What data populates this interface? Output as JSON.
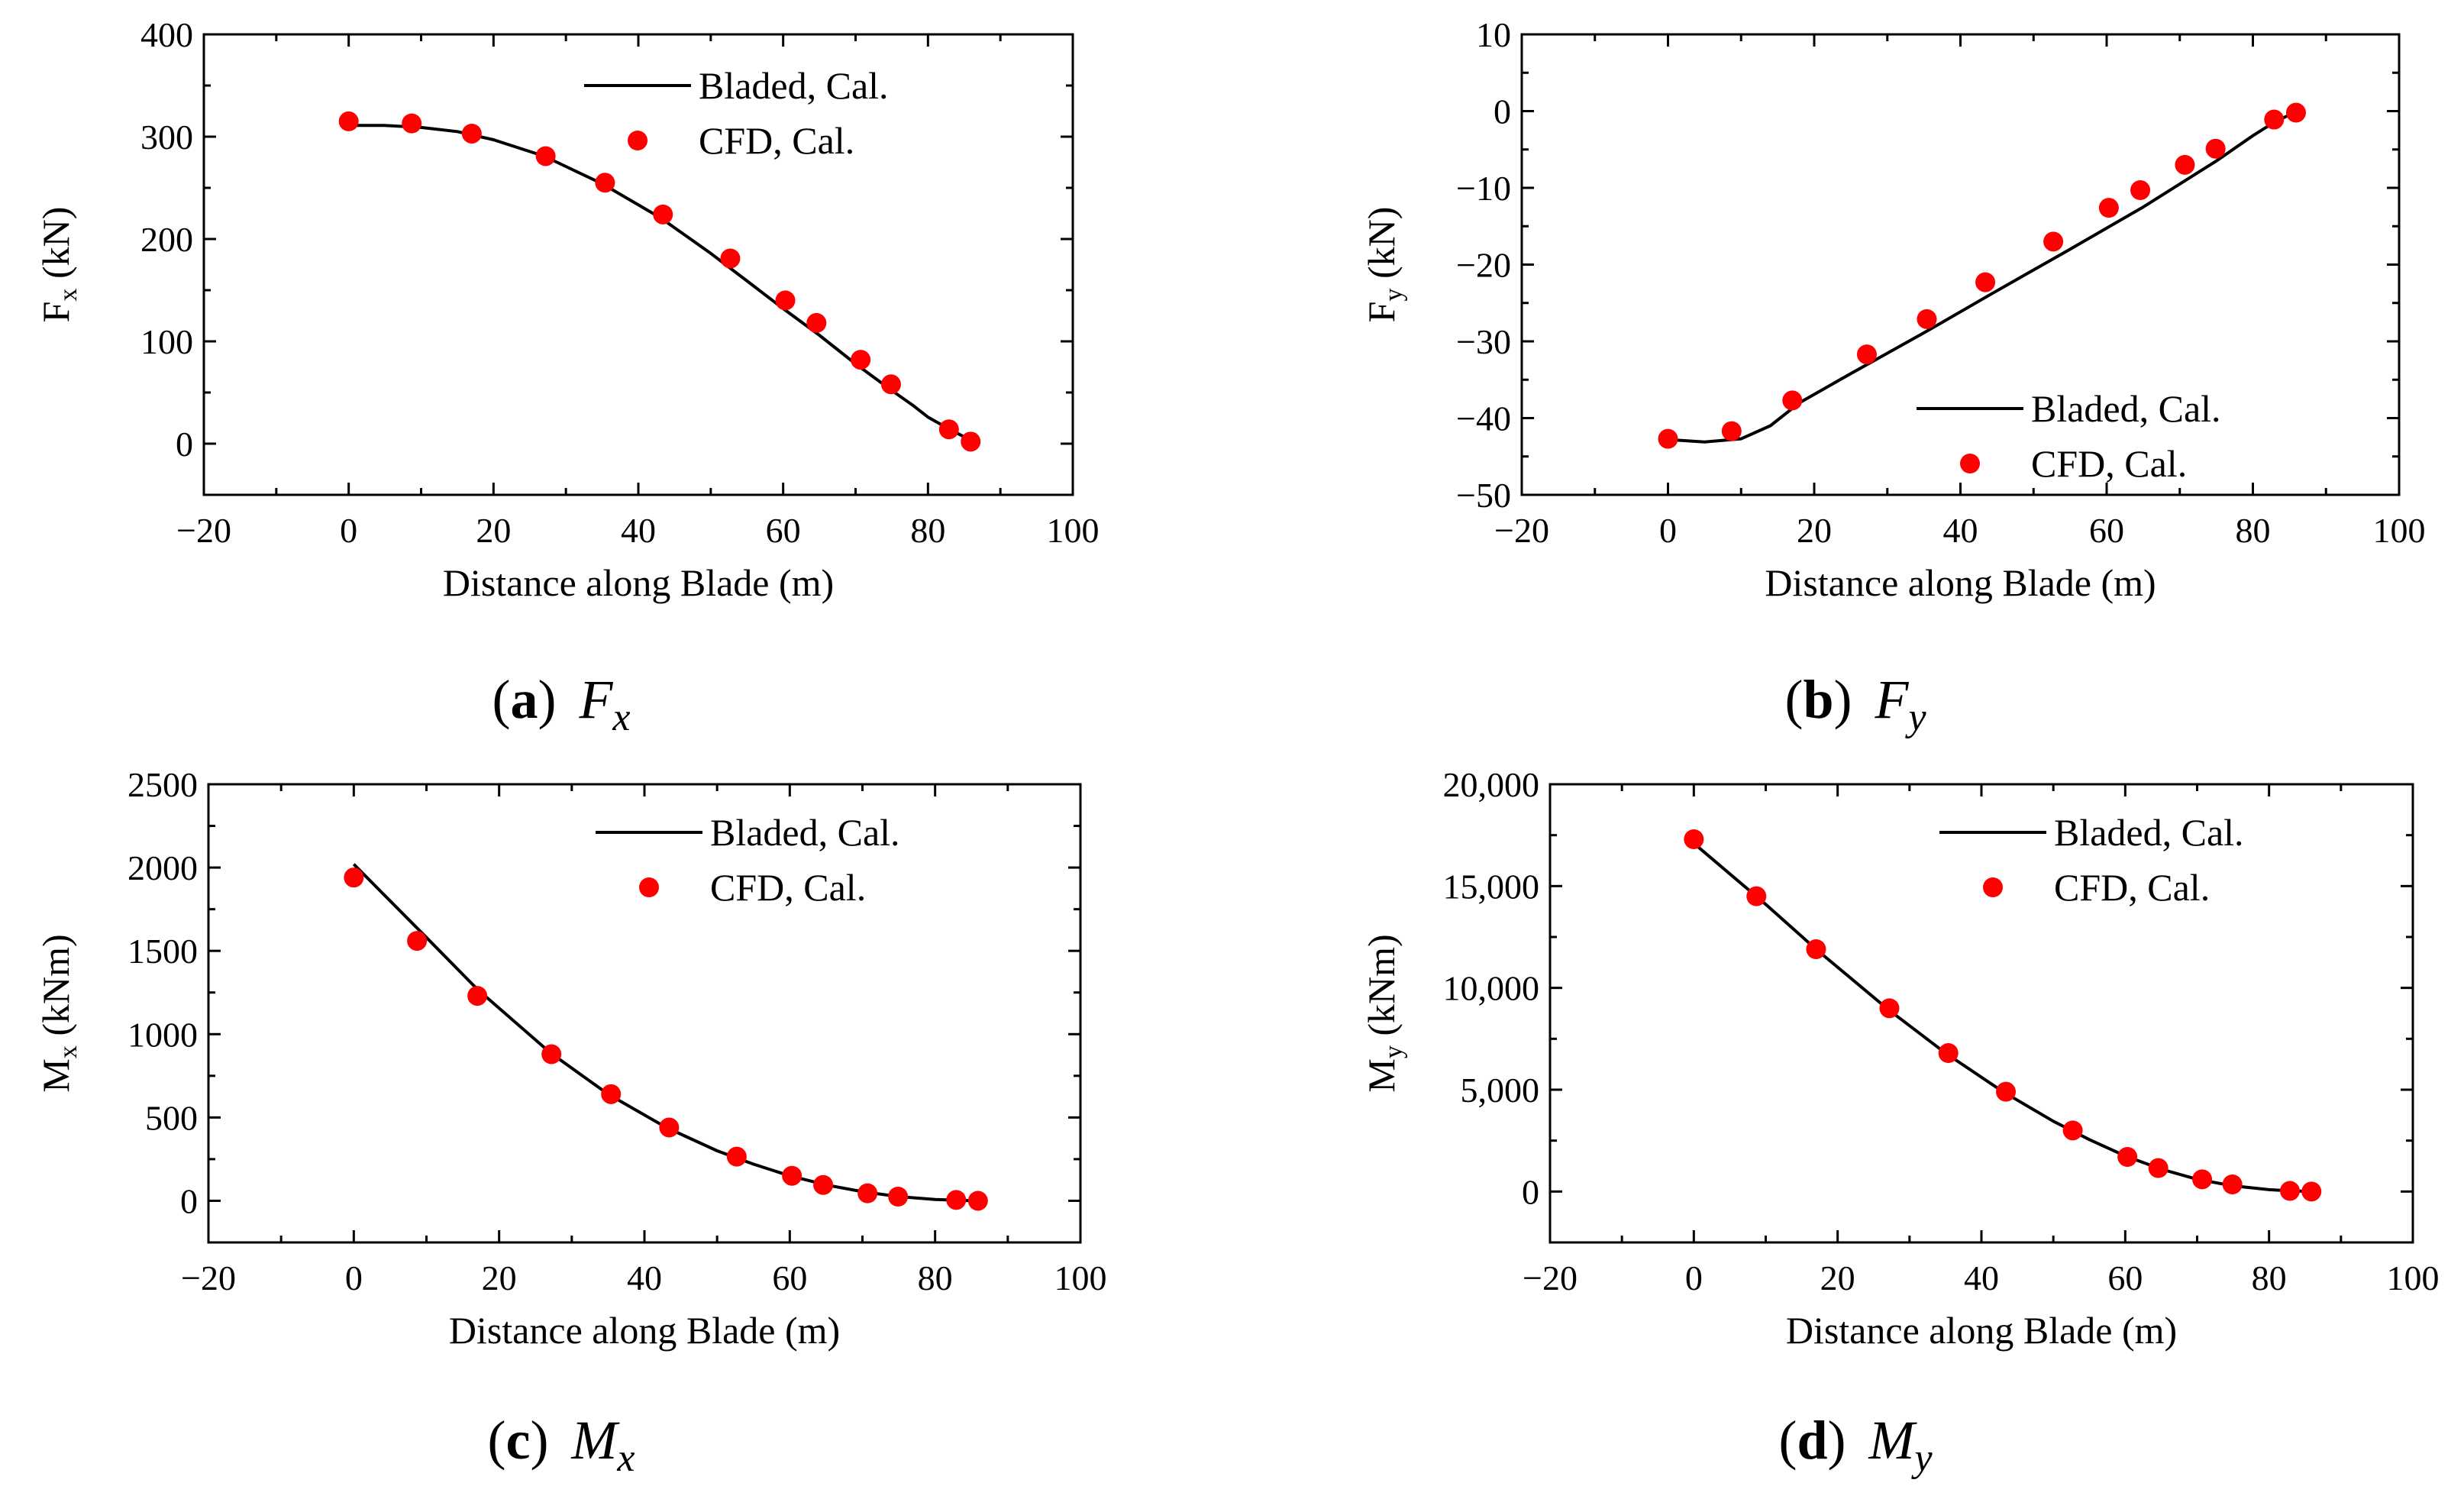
{
  "colors": {
    "line": "#000000",
    "marker": "#ff0000"
  },
  "chart_data": [
    {
      "type": "line",
      "panel": "a",
      "caption_tag": "(a)",
      "caption_symbol": "F",
      "caption_subscript": "x",
      "xlabel": "Distance along Blade (m)",
      "ylabel": "F",
      "ylabel_subscript": "x",
      "ylabel_unit": " (kN)",
      "xlim": [
        -20,
        100
      ],
      "ylim": [
        -50,
        400
      ],
      "xticks": [
        -20,
        0,
        20,
        40,
        60,
        80,
        100
      ],
      "xtick_labels": [
        "−20",
        "0",
        "20",
        "40",
        "60",
        "80",
        "100"
      ],
      "yticks": [
        0,
        100,
        200,
        300,
        400
      ],
      "ytick_labels": [
        "0",
        "100",
        "200",
        "300",
        "400"
      ],
      "legend_position": "top-right",
      "series": [
        {
          "name": "Bladed, Cal.",
          "kind": "line",
          "x": [
            0,
            5,
            10,
            15,
            20,
            27,
            35,
            43,
            50,
            55,
            60,
            65,
            70,
            75,
            78,
            80,
            83,
            86
          ],
          "y": [
            311,
            311,
            309,
            305,
            297,
            281,
            254,
            221,
            186,
            159,
            132,
            106,
            78,
            52,
            37,
            26,
            14,
            3
          ]
        },
        {
          "name": "CFD, Cal.",
          "kind": "scatter",
          "x": [
            0,
            8.7,
            17,
            27.2,
            35.4,
            43.4,
            52.7,
            60.3,
            64.6,
            70.7,
            74.9,
            82.9,
            85.9
          ],
          "y": [
            315,
            313,
            303,
            281,
            255,
            224,
            181,
            140,
            118,
            82,
            58,
            14,
            2
          ]
        }
      ]
    },
    {
      "type": "line",
      "panel": "b",
      "caption_tag": "(b)",
      "caption_symbol": "F",
      "caption_subscript": "y",
      "xlabel": "Distance along Blade (m)",
      "ylabel": "F",
      "ylabel_subscript": "y",
      "ylabel_unit": " (kN)",
      "xlim": [
        -20,
        100
      ],
      "ylim": [
        -50,
        10
      ],
      "xticks": [
        -20,
        0,
        20,
        40,
        60,
        80,
        100
      ],
      "xtick_labels": [
        "−20",
        "0",
        "20",
        "40",
        "60",
        "80",
        "100"
      ],
      "yticks": [
        -50,
        -40,
        -30,
        -20,
        -10,
        0,
        10
      ],
      "ytick_labels": [
        "−50",
        "−40",
        "−30",
        "−20",
        "−10",
        "0",
        "10"
      ],
      "legend_position": "bottom-right",
      "series": [
        {
          "name": "Bladed, Cal.",
          "kind": "line",
          "x": [
            0,
            5,
            10,
            14,
            18,
            25,
            35,
            45,
            55,
            65,
            75,
            80,
            83,
            85,
            86
          ],
          "y": [
            -42.8,
            -43.1,
            -42.7,
            -41,
            -38,
            -34.2,
            -28.9,
            -23.4,
            -18,
            -12.5,
            -6.5,
            -3.2,
            -1.4,
            -0.5,
            -0.2
          ]
        },
        {
          "name": "CFD, Cal.",
          "kind": "scatter",
          "x": [
            0,
            8.7,
            17,
            27.2,
            35.4,
            43.4,
            52.7,
            60.3,
            64.6,
            70.7,
            74.9,
            82.9,
            85.9
          ],
          "y": [
            -42.7,
            -41.7,
            -37.7,
            -31.7,
            -27.1,
            -22.3,
            -17,
            -12.6,
            -10.3,
            -7,
            -4.9,
            -1.1,
            -0.2
          ]
        }
      ]
    },
    {
      "type": "line",
      "panel": "c",
      "caption_tag": "(c)",
      "caption_symbol": "M",
      "caption_subscript": "x",
      "xlabel": "Distance along Blade (m)",
      "ylabel": "M",
      "ylabel_subscript": "x",
      "ylabel_unit": " (kNm)",
      "xlim": [
        -20,
        100
      ],
      "ylim": [
        -250,
        2500
      ],
      "xticks": [
        -20,
        0,
        20,
        40,
        60,
        80,
        100
      ],
      "xtick_labels": [
        "−20",
        "0",
        "20",
        "40",
        "60",
        "80",
        "100"
      ],
      "yticks": [
        0,
        500,
        1000,
        1500,
        2000,
        2500
      ],
      "ytick_labels": [
        "0",
        "500",
        "1000",
        "1500",
        "2000",
        "2500"
      ],
      "legend_position": "top-right",
      "series": [
        {
          "name": "Bladed, Cal.",
          "kind": "line",
          "x": [
            0,
            5,
            10,
            17,
            27,
            35,
            43,
            50,
            55,
            60,
            65,
            70,
            75,
            80,
            83,
            86
          ],
          "y": [
            2020,
            1800,
            1580,
            1270,
            890,
            640,
            440,
            300,
            220,
            150,
            95,
            55,
            25,
            8,
            3,
            0
          ]
        },
        {
          "name": "CFD, Cal.",
          "kind": "scatter",
          "x": [
            0,
            8.7,
            17,
            27.2,
            35.4,
            43.4,
            52.7,
            60.3,
            64.6,
            70.7,
            74.9,
            82.9,
            85.9
          ],
          "y": [
            1940,
            1560,
            1230,
            880,
            640,
            440,
            265,
            150,
            95,
            45,
            25,
            5,
            0
          ]
        }
      ]
    },
    {
      "type": "line",
      "panel": "d",
      "caption_tag": "(d)",
      "caption_symbol": "M",
      "caption_subscript": "y",
      "xlabel": "Distance along Blade (m)",
      "ylabel": "M",
      "ylabel_subscript": "y",
      "ylabel_unit": " (kNm)",
      "xlim": [
        -20,
        100
      ],
      "ylim": [
        -2500,
        20000
      ],
      "xticks": [
        -20,
        0,
        20,
        40,
        60,
        80,
        100
      ],
      "xtick_labels": [
        "−20",
        "0",
        "20",
        "40",
        "60",
        "80",
        "100"
      ],
      "yticks": [
        0,
        5000,
        10000,
        15000,
        20000
      ],
      "ytick_labels": [
        "0",
        "5,000",
        "10,000",
        "15,000",
        "20,000"
      ],
      "legend_position": "top-right",
      "series": [
        {
          "name": "Bladed, Cal.",
          "kind": "line",
          "x": [
            0,
            5,
            10,
            17,
            27,
            35,
            43,
            50,
            55,
            60,
            65,
            70,
            75,
            80,
            83,
            86
          ],
          "y": [
            17100,
            15600,
            14100,
            11900,
            8950,
            6800,
            4900,
            3450,
            2550,
            1750,
            1100,
            600,
            280,
            90,
            30,
            0
          ]
        },
        {
          "name": "CFD, Cal.",
          "kind": "scatter",
          "x": [
            0,
            8.7,
            17,
            27.2,
            35.4,
            43.4,
            52.7,
            60.3,
            64.6,
            70.7,
            74.9,
            82.9,
            85.9
          ],
          "y": [
            17300,
            14500,
            11900,
            9000,
            6800,
            4900,
            3000,
            1700,
            1150,
            600,
            350,
            30,
            0
          ]
        }
      ]
    }
  ]
}
